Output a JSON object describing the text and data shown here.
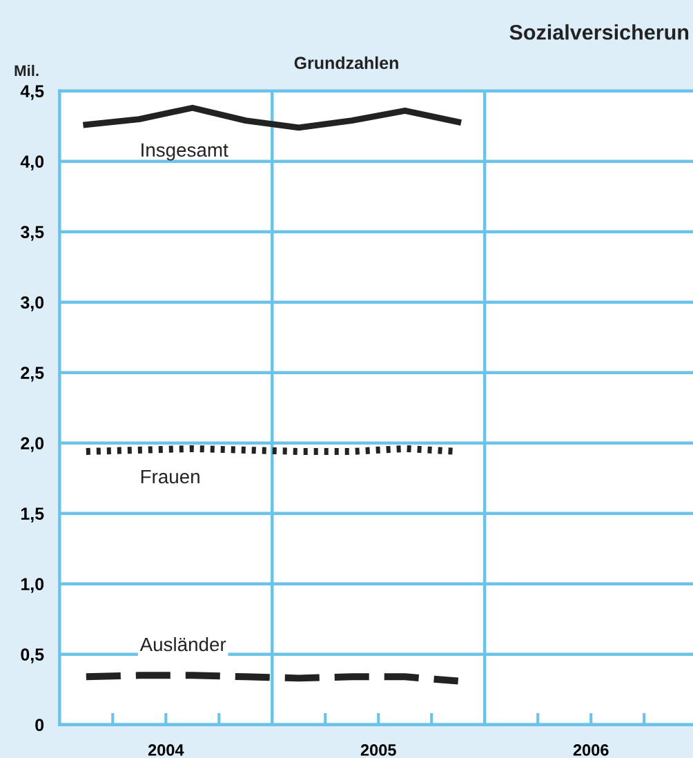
{
  "chart_data": {
    "type": "line",
    "title": "Sozialversicherun",
    "subtitle": "Grundzahlen",
    "ylabel": "Mil.",
    "x": [
      2004.125,
      2004.375,
      2004.625,
      2004.875,
      2005.125,
      2005.375,
      2005.625,
      2005.875
    ],
    "series": [
      {
        "name": "Insgesamt",
        "color": "#222222",
        "line_style": "solid",
        "values": [
          4.26,
          4.3,
          4.38,
          4.29,
          4.24,
          4.29,
          4.36,
          4.28
        ]
      },
      {
        "name": "Frauen",
        "color": "#222222",
        "line_style": "dotted",
        "values": [
          1.94,
          1.95,
          1.96,
          1.95,
          1.94,
          1.94,
          1.96,
          1.94
        ]
      },
      {
        "name": "Ausländer",
        "color": "#222222",
        "line_style": "dashed",
        "values": [
          0.34,
          0.35,
          0.35,
          0.34,
          0.33,
          0.34,
          0.34,
          0.31
        ]
      }
    ],
    "xlim": [
      2004,
      2006.98
    ],
    "xticks": [
      {
        "value": 2004.25,
        "label": null
      },
      {
        "value": 2004.5,
        "label": "2004"
      },
      {
        "value": 2004.75,
        "label": null
      },
      {
        "value": 2005.25,
        "label": null
      },
      {
        "value": 2005.5,
        "label": "2005"
      },
      {
        "value": 2005.75,
        "label": null
      },
      {
        "value": 2006.25,
        "label": null
      },
      {
        "value": 2006.5,
        "label": "2006"
      },
      {
        "value": 2006.75,
        "label": null
      }
    ],
    "ylim": [
      0,
      4.5
    ],
    "yticks": [
      {
        "value": 0,
        "label": "0"
      },
      {
        "value": 0.5,
        "label": "0,5"
      },
      {
        "value": 1,
        "label": "1,0"
      },
      {
        "value": 1.5,
        "label": "1,5"
      },
      {
        "value": 2,
        "label": "2,0"
      },
      {
        "value": 2.5,
        "label": "2,5"
      },
      {
        "value": 3,
        "label": "3,0"
      },
      {
        "value": 3.5,
        "label": "3,5"
      },
      {
        "value": 4,
        "label": "4,0"
      },
      {
        "value": 4.5,
        "label": "4,5"
      }
    ],
    "grid": "y",
    "ref_lines": [
      {
        "axis": "x",
        "value": 2005,
        "color": "#6cc3ea"
      },
      {
        "axis": "x",
        "value": 2006,
        "color": "#6cc3ea"
      }
    ],
    "legend": false
  }
}
